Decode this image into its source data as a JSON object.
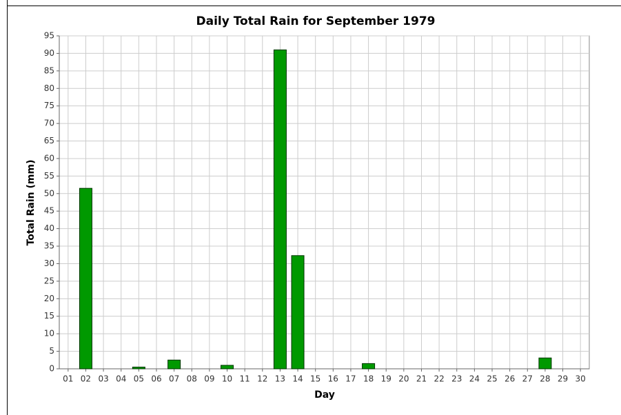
{
  "chart_data": {
    "type": "bar",
    "title": "Daily Total Rain for September 1979",
    "x_label": "Day",
    "y_label": "Total Rain (mm)",
    "categories": [
      "01",
      "02",
      "03",
      "04",
      "05",
      "06",
      "07",
      "08",
      "09",
      "10",
      "11",
      "12",
      "13",
      "14",
      "15",
      "16",
      "17",
      "18",
      "19",
      "20",
      "21",
      "22",
      "23",
      "24",
      "25",
      "26",
      "27",
      "28",
      "29",
      "30"
    ],
    "values": [
      0,
      51.5,
      0,
      0,
      0.5,
      0,
      2.5,
      0,
      0,
      1.0,
      0,
      0,
      91,
      32.3,
      0,
      0,
      0,
      1.5,
      0,
      0,
      0,
      0,
      0,
      0,
      0,
      0,
      0,
      3.1,
      0,
      0
    ],
    "color": "#009900",
    "ylim": [
      0,
      95
    ],
    "yticks": [
      0,
      5,
      10,
      15,
      20,
      25,
      30,
      35,
      40,
      45,
      50,
      55,
      60,
      65,
      70,
      75,
      80,
      85,
      90,
      95
    ],
    "grid": true
  }
}
